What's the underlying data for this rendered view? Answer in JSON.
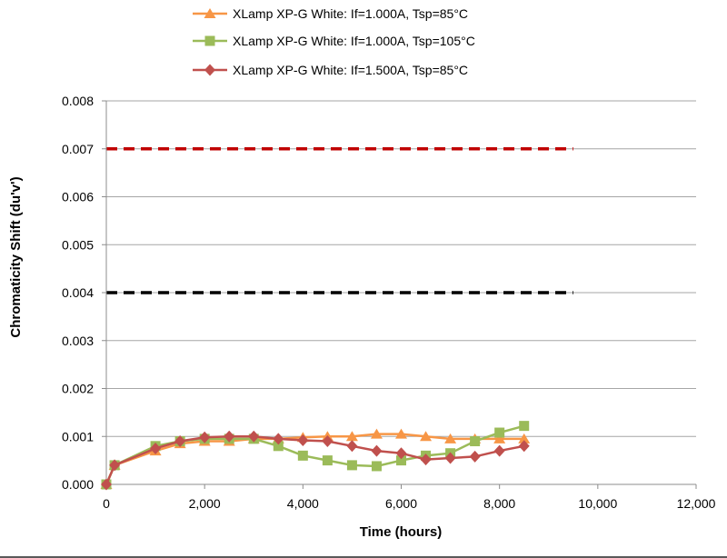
{
  "chart_data": {
    "type": "line",
    "title": "",
    "xlabel": "Time (hours)",
    "ylabel": "Chromaticity Shift (du'v')",
    "xlim": [
      0,
      12000
    ],
    "ylim": [
      0,
      0.008
    ],
    "x_ticks": [
      0,
      2000,
      4000,
      6000,
      8000,
      10000,
      12000
    ],
    "x_tick_labels": [
      "0",
      "2,000",
      "4,000",
      "6,000",
      "8,000",
      "10,000",
      "12,000"
    ],
    "y_ticks": [
      0,
      0.001,
      0.002,
      0.003,
      0.004,
      0.005,
      0.006,
      0.007,
      0.008
    ],
    "y_tick_labels": [
      "0.000",
      "0.001",
      "0.002",
      "0.003",
      "0.004",
      "0.005",
      "0.006",
      "0.007",
      "0.008"
    ],
    "grid": "horizontal",
    "legend_position": "top",
    "series": [
      {
        "name": "XLamp XP-G White: If=1.000A, Tsp=85°C",
        "color": "#f79646",
        "marker": "triangle",
        "x": [
          0,
          168,
          1000,
          1500,
          2000,
          2500,
          3000,
          3500,
          4000,
          4500,
          5000,
          5500,
          6000,
          6500,
          7000,
          7500,
          8000,
          8500
        ],
        "y": [
          0.0,
          0.0004,
          0.0007,
          0.00085,
          0.0009,
          0.0009,
          0.00095,
          0.00095,
          0.00098,
          0.001,
          0.001,
          0.00105,
          0.00105,
          0.001,
          0.00095,
          0.00095,
          0.00095,
          0.00095
        ]
      },
      {
        "name": "XLamp XP-G White: If=1.000A, Tsp=105°C",
        "color": "#9bbb59",
        "marker": "square",
        "x": [
          0,
          168,
          1000,
          1500,
          2000,
          2500,
          3000,
          3500,
          4000,
          4500,
          5000,
          5500,
          6000,
          6500,
          7000,
          7500,
          8000,
          8500
        ],
        "y": [
          0.0,
          0.0004,
          0.0008,
          0.0009,
          0.00095,
          0.00095,
          0.00095,
          0.0008,
          0.0006,
          0.0005,
          0.0004,
          0.00038,
          0.0005,
          0.0006,
          0.00065,
          0.0009,
          0.00108,
          0.00122
        ]
      },
      {
        "name": "XLamp XP-G White: If=1.500A, Tsp=85°C",
        "color": "#c0504d",
        "marker": "diamond",
        "x": [
          0,
          168,
          1000,
          1500,
          2000,
          2500,
          3000,
          3500,
          4000,
          4500,
          5000,
          5500,
          6000,
          6500,
          7000,
          7500,
          8000,
          8500
        ],
        "y": [
          0.0,
          0.0004,
          0.00075,
          0.0009,
          0.00098,
          0.001,
          0.001,
          0.00095,
          0.00092,
          0.0009,
          0.0008,
          0.0007,
          0.00065,
          0.00052,
          0.00055,
          0.00058,
          0.0007,
          0.0008
        ]
      }
    ],
    "reference_lines": [
      {
        "y": 0.007,
        "x": [
          0,
          9500
        ],
        "color": "#c00000",
        "style": "dashed"
      },
      {
        "y": 0.004,
        "x": [
          0,
          9500
        ],
        "color": "#000000",
        "style": "dashed"
      }
    ]
  }
}
